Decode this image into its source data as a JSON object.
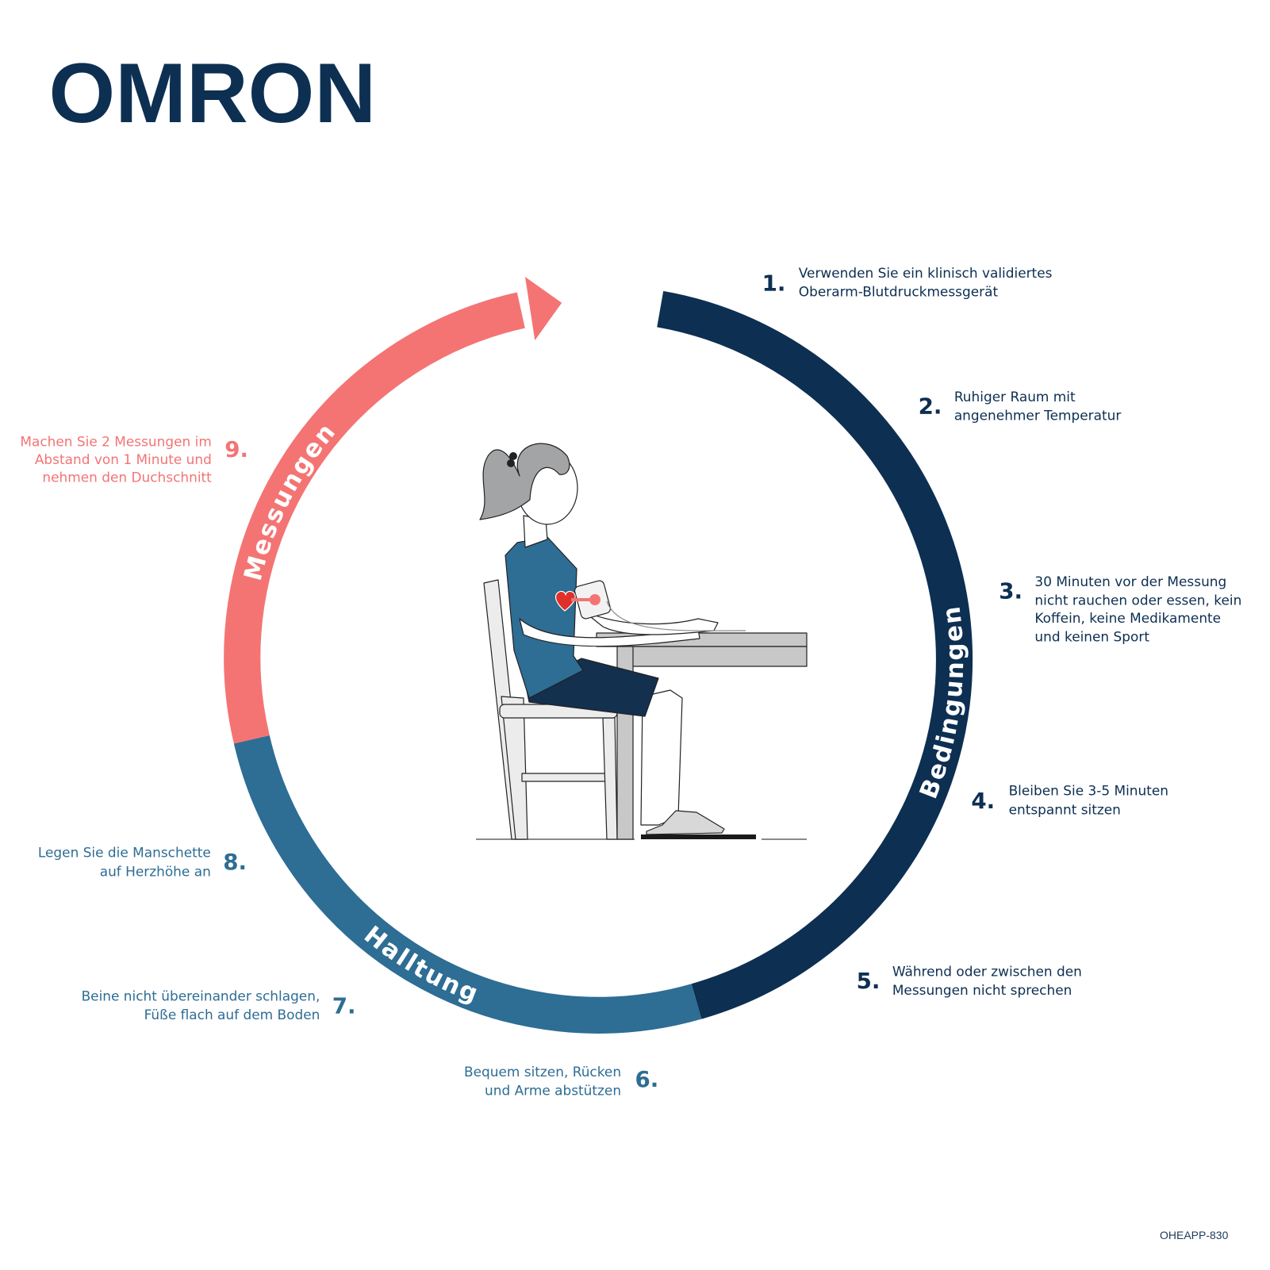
{
  "logo": {
    "text": "OMRON"
  },
  "colors": {
    "navy": "#0d2f52",
    "blue": "#2e6d94",
    "pink": "#f47474"
  },
  "sections": {
    "conditions": "Bedingungen",
    "posture": "Halltung",
    "measurements": "Messungen"
  },
  "steps": [
    {
      "num": "1.",
      "lines": [
        "Verwenden Sie ein klinisch validiertes",
        "Oberarm-Blutdruckmessgerät"
      ]
    },
    {
      "num": "2.",
      "lines": [
        "Ruhiger Raum mit",
        "angenehmer Temperatur"
      ]
    },
    {
      "num": "3.",
      "lines": [
        "30 Minuten vor der Messung",
        "nicht rauchen oder essen, kein",
        "Koffein, keine Medikamente",
        "und keinen Sport"
      ]
    },
    {
      "num": "4.",
      "lines": [
        "Bleiben Sie 3-5 Minuten",
        "entspannt sitzen"
      ]
    },
    {
      "num": "5.",
      "lines": [
        "Während oder zwischen den",
        "Messungen nicht sprechen"
      ]
    },
    {
      "num": "6.",
      "lines": [
        "Bequem sitzen, Rücken",
        "und Arme abstützen"
      ]
    },
    {
      "num": "7.",
      "lines": [
        "Beine nicht übereinander schlagen,",
        "Füße flach auf dem Boden"
      ]
    },
    {
      "num": "8.",
      "lines": [
        "Legen Sie die Manschette",
        "auf Herzhöhe an"
      ]
    },
    {
      "num": "9.",
      "lines": [
        "Machen Sie 2 Messungen im",
        "Abstand von 1 Minute und",
        "nehmen den Duchschnitt"
      ]
    }
  ],
  "footer": {
    "code": "OHEAPP-830"
  }
}
